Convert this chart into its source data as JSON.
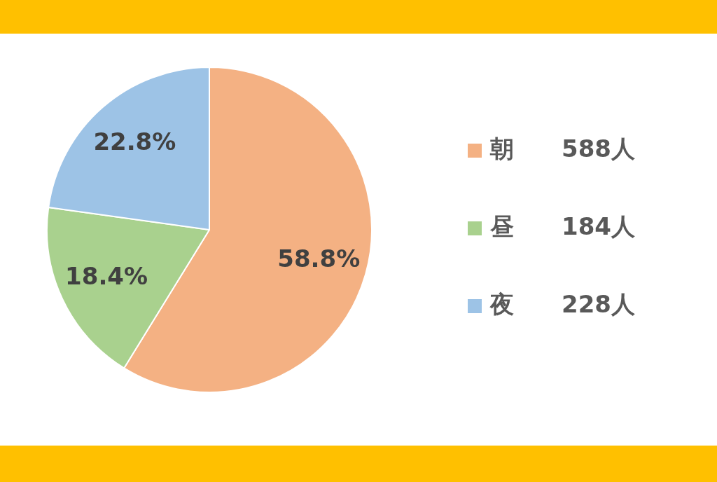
{
  "chart_data": {
    "type": "pie",
    "categories": [
      "朝　　588人",
      "昼　　184人",
      "夜　　228人"
    ],
    "values": [
      58.8,
      18.4,
      22.8
    ],
    "colors": [
      "#f4b183",
      "#a9d18e",
      "#9dc3e6"
    ],
    "value_labels": [
      "58.8%",
      "18.4%",
      "22.8%"
    ],
    "legend": "right"
  }
}
